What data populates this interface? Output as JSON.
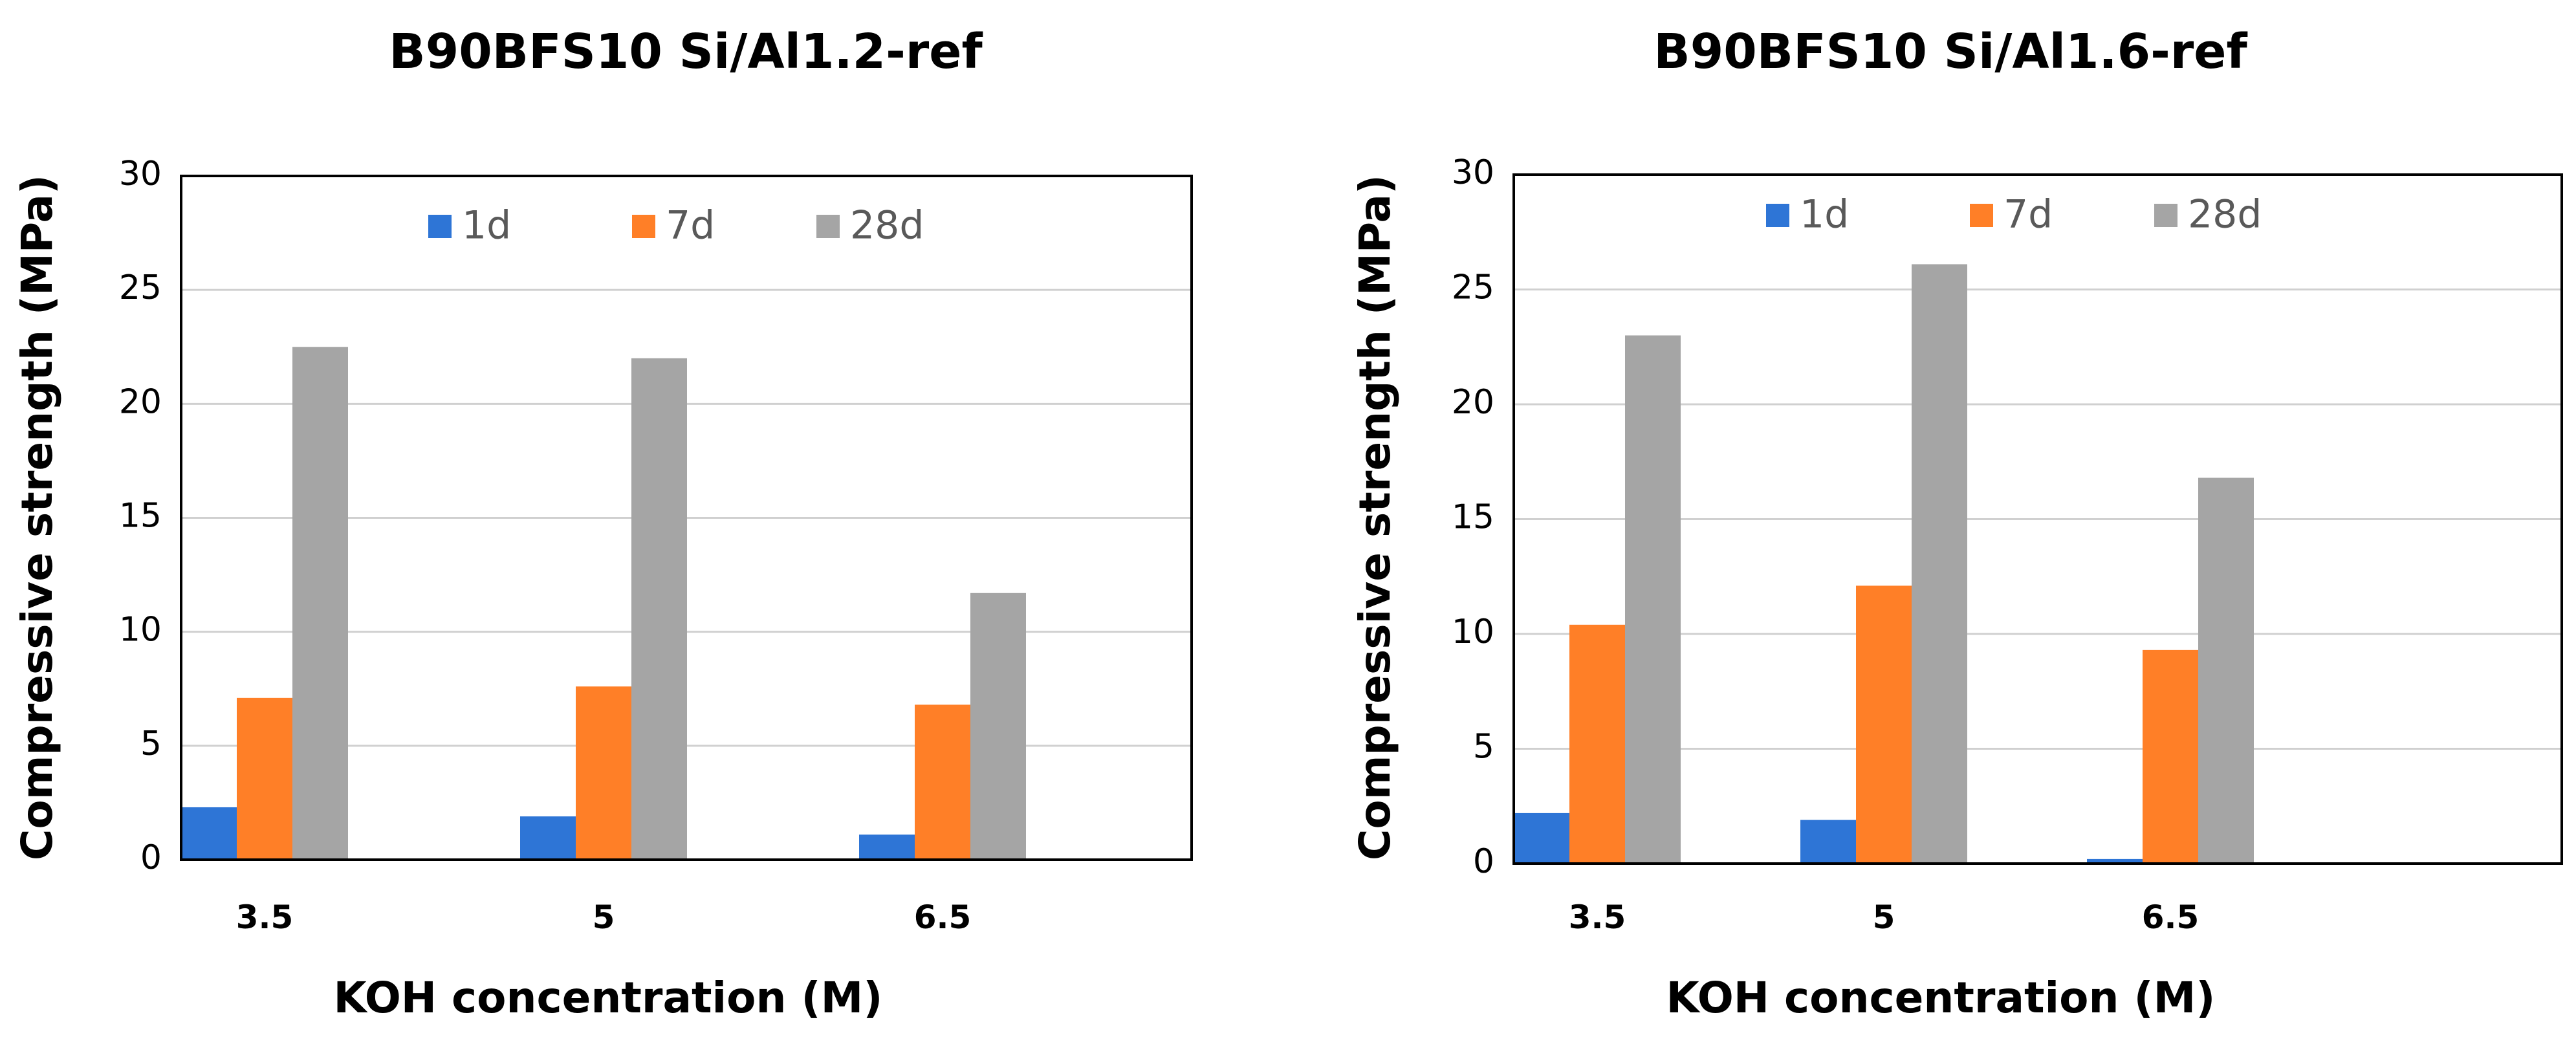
{
  "colors": {
    "1d": "#2e75d6",
    "7d": "#ff7f27",
    "28d": "#a5a5a5"
  },
  "chart_data": [
    {
      "type": "bar",
      "title": "B90BFS10 Si/Al1.2-ref",
      "xlabel": "KOH concentration  (M)",
      "ylabel": "Compressive strength (MPa)",
      "ylim": [
        0,
        30
      ],
      "yticks": [
        "0",
        "5",
        "10",
        "15",
        "20",
        "25",
        "30"
      ],
      "grid": true,
      "legend": "top",
      "categories": [
        "3.5",
        "5",
        "6.5"
      ],
      "series": [
        {
          "name": "1d",
          "values": [
            2.3,
            1.9,
            1.1
          ]
        },
        {
          "name": "7d",
          "values": [
            7.1,
            7.6,
            6.8
          ]
        },
        {
          "name": "28d",
          "values": [
            22.5,
            22.0,
            11.7
          ]
        }
      ]
    },
    {
      "type": "bar",
      "title": "B90BFS10 Si/Al1.6-ref",
      "xlabel": "KOH concentration  (M)",
      "ylabel": "Compressive strength (MPa)",
      "ylim": [
        0,
        30
      ],
      "yticks": [
        "0",
        "5",
        "10",
        "15",
        "20",
        "25",
        "30"
      ],
      "grid": true,
      "legend": "top",
      "categories": [
        "3.5",
        "5",
        "6.5"
      ],
      "series": [
        {
          "name": "1d",
          "values": [
            2.2,
            1.9,
            0.2
          ]
        },
        {
          "name": "7d",
          "values": [
            10.4,
            12.1,
            9.3
          ]
        },
        {
          "name": "28d",
          "values": [
            23.0,
            26.1,
            16.8
          ]
        }
      ]
    }
  ]
}
